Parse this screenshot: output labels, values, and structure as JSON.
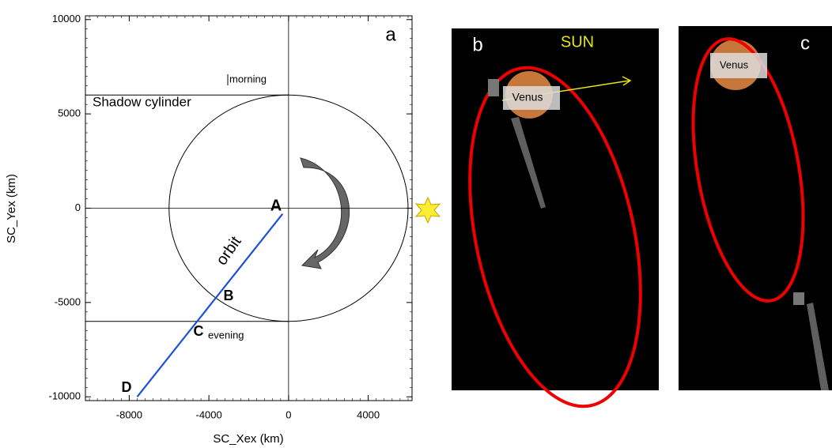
{
  "chart_data": {
    "type": "line",
    "panel_label": "a",
    "xlabel": "SC_Xex (km)",
    "ylabel": "SC_Yex (km)",
    "xlim": [
      -10200,
      6200
    ],
    "ylim": [
      -10200,
      10200
    ],
    "xticks": [
      -8000,
      -4000,
      0,
      4000
    ],
    "yticks": [
      -10000,
      -5000,
      0,
      5000,
      10000
    ],
    "series": [
      {
        "name": "orbit",
        "color": "#1f4fd8",
        "x": [
          -7600,
          -300
        ],
        "values": [
          -10000,
          -300
        ]
      }
    ],
    "shadow_radius": 6000,
    "annotations": [
      "Shadow cylinder",
      "morning",
      "evening",
      "A",
      "B",
      "C",
      "D"
    ]
  },
  "images": [
    {
      "label": "b",
      "sun": "SUN",
      "venus": "Venus"
    },
    {
      "label": "c",
      "venus": "Venus"
    }
  ]
}
